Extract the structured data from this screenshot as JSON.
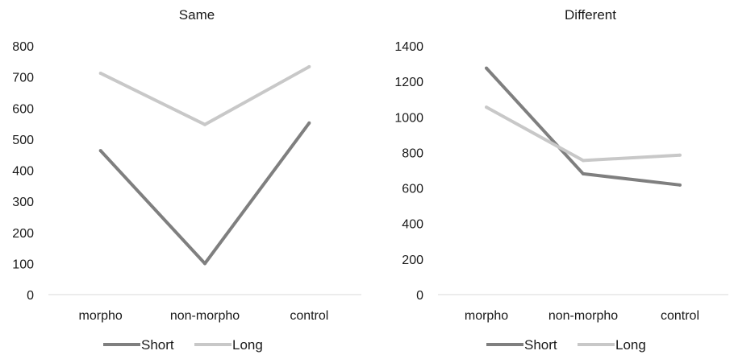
{
  "chart_data": [
    {
      "type": "line",
      "title": "Same",
      "categories": [
        "morpho",
        "non-morpho",
        "control"
      ],
      "ylim": [
        0,
        800
      ],
      "yticks": [
        0,
        100,
        200,
        300,
        400,
        500,
        600,
        700,
        800
      ],
      "grid": false,
      "legend": "bottom",
      "series": [
        {
          "name": "Short",
          "color": "#7f7f7f",
          "values": [
            463,
            100,
            552
          ]
        },
        {
          "name": "Long",
          "color": "#c8c8c8",
          "values": [
            712,
            547,
            733
          ]
        }
      ]
    },
    {
      "type": "line",
      "title": "Different",
      "categories": [
        "morpho",
        "non-morpho",
        "control"
      ],
      "ylim": [
        0,
        1400
      ],
      "yticks": [
        0,
        200,
        400,
        600,
        800,
        1000,
        1200,
        1400
      ],
      "grid": false,
      "legend": "bottom",
      "series": [
        {
          "name": "Short",
          "color": "#7f7f7f",
          "values": [
            1275,
            680,
            617
          ]
        },
        {
          "name": "Long",
          "color": "#c8c8c8",
          "values": [
            1055,
            755,
            785
          ]
        }
      ]
    }
  ]
}
